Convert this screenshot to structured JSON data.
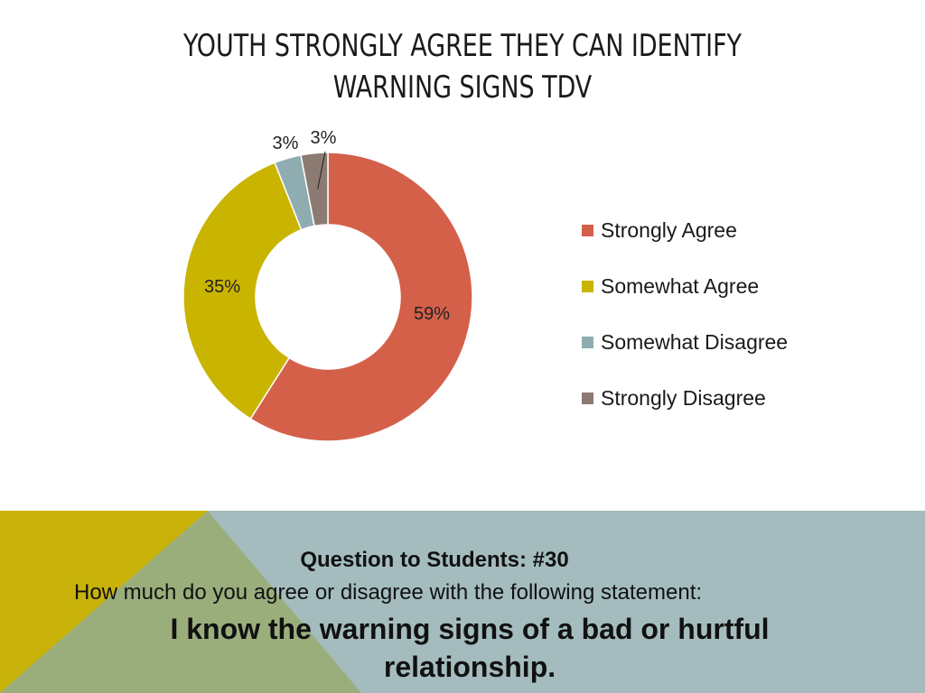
{
  "title_lines": [
    "YOUTH STRONGLY AGREE THEY CAN IDENTIFY",
    "WARNING SIGNS TDV"
  ],
  "chart_data": {
    "type": "pie",
    "variant": "donut",
    "categories": [
      "Strongly Agree",
      "Somewhat Agree",
      "Somewhat Disagree",
      "Strongly Disagree"
    ],
    "values": [
      59,
      35,
      3,
      3
    ],
    "labels": [
      "59%",
      "35%",
      "3%",
      "3%"
    ],
    "colors": [
      "#d4604a",
      "#c9b400",
      "#8fadb0",
      "#8c7b73"
    ],
    "legend_position": "right"
  },
  "question": {
    "title": "Question to Students: #30",
    "prompt": "How much do you agree or disagree with the following statement:",
    "statement": "I know the warning signs of a bad or hurtful relationship."
  },
  "colors": {
    "band_blue": "#a4bcbe",
    "band_yellow": "#c8b20a",
    "band_green": "#9aae7c"
  }
}
